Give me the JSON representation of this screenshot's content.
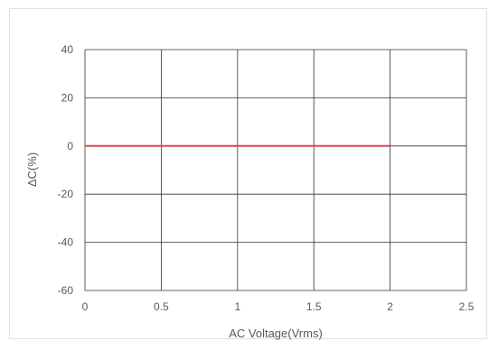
{
  "chart_data": {
    "type": "line",
    "title": "",
    "xlabel": "AC Voltage(Vrms)",
    "ylabel": "ΔC(%)",
    "xlim": [
      0,
      2.5
    ],
    "ylim": [
      -60,
      40
    ],
    "x_ticks": [
      0,
      0.5,
      1,
      1.5,
      2,
      2.5
    ],
    "x_tick_labels": [
      "0",
      "0.5",
      "1",
      "1.5",
      "2",
      "2.5"
    ],
    "y_ticks": [
      40,
      20,
      0,
      -20,
      -40,
      -60
    ],
    "y_tick_labels": [
      "40",
      "20",
      "0",
      "-20",
      "-40",
      "-60"
    ],
    "grid": true,
    "legend": "none",
    "series": [
      {
        "x": [
          0,
          0.5,
          1,
          1.5,
          2
        ],
        "y": [
          0,
          0,
          0,
          0,
          0
        ],
        "color": "#e0464e"
      }
    ]
  },
  "colors": {
    "grid": "#333333",
    "series": "#e0464e",
    "text": "#595959",
    "frame": "#e2e2e2"
  }
}
